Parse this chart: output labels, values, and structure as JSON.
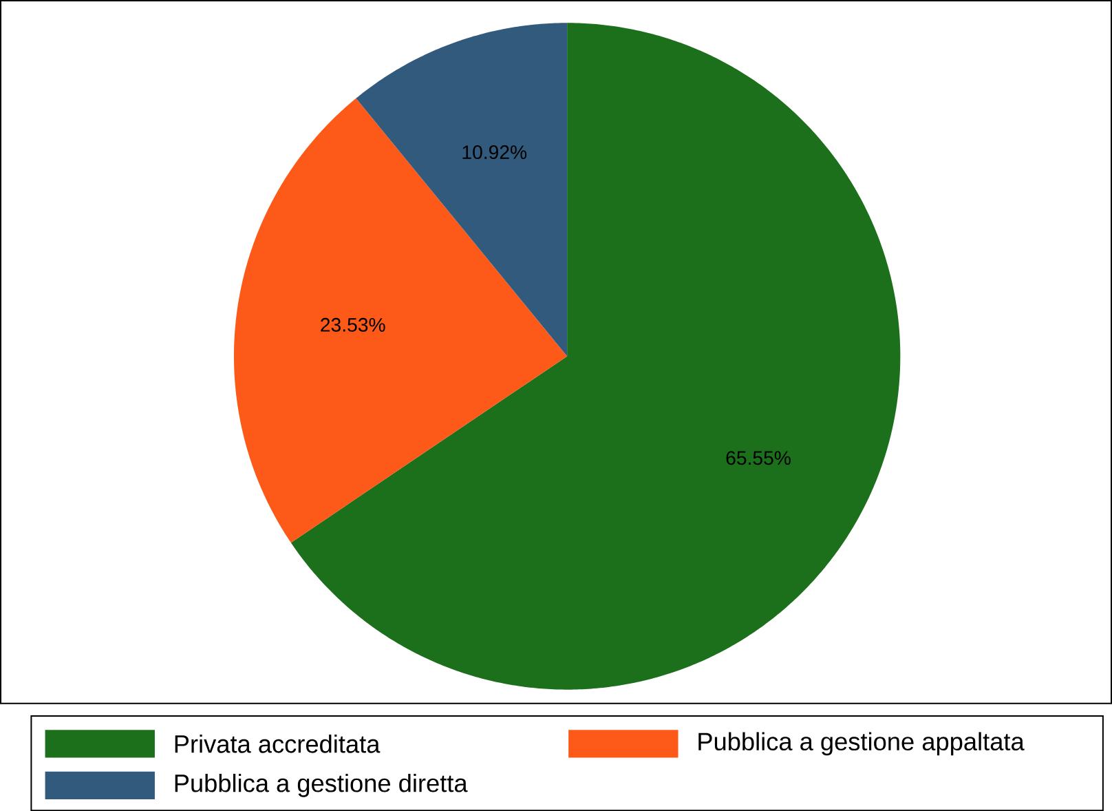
{
  "chart_data": {
    "type": "pie",
    "categories": [
      "Privata accreditata",
      "Pubblica a gestione appaltata",
      "Pubblica a gestione diretta"
    ],
    "values": [
      65.55,
      23.53,
      10.92
    ],
    "colors": [
      "#1c701c",
      "#fd5918",
      "#325a7d"
    ],
    "value_labels": [
      "65.55%",
      "23.53%",
      "10.92%"
    ],
    "legend": "bottom"
  }
}
